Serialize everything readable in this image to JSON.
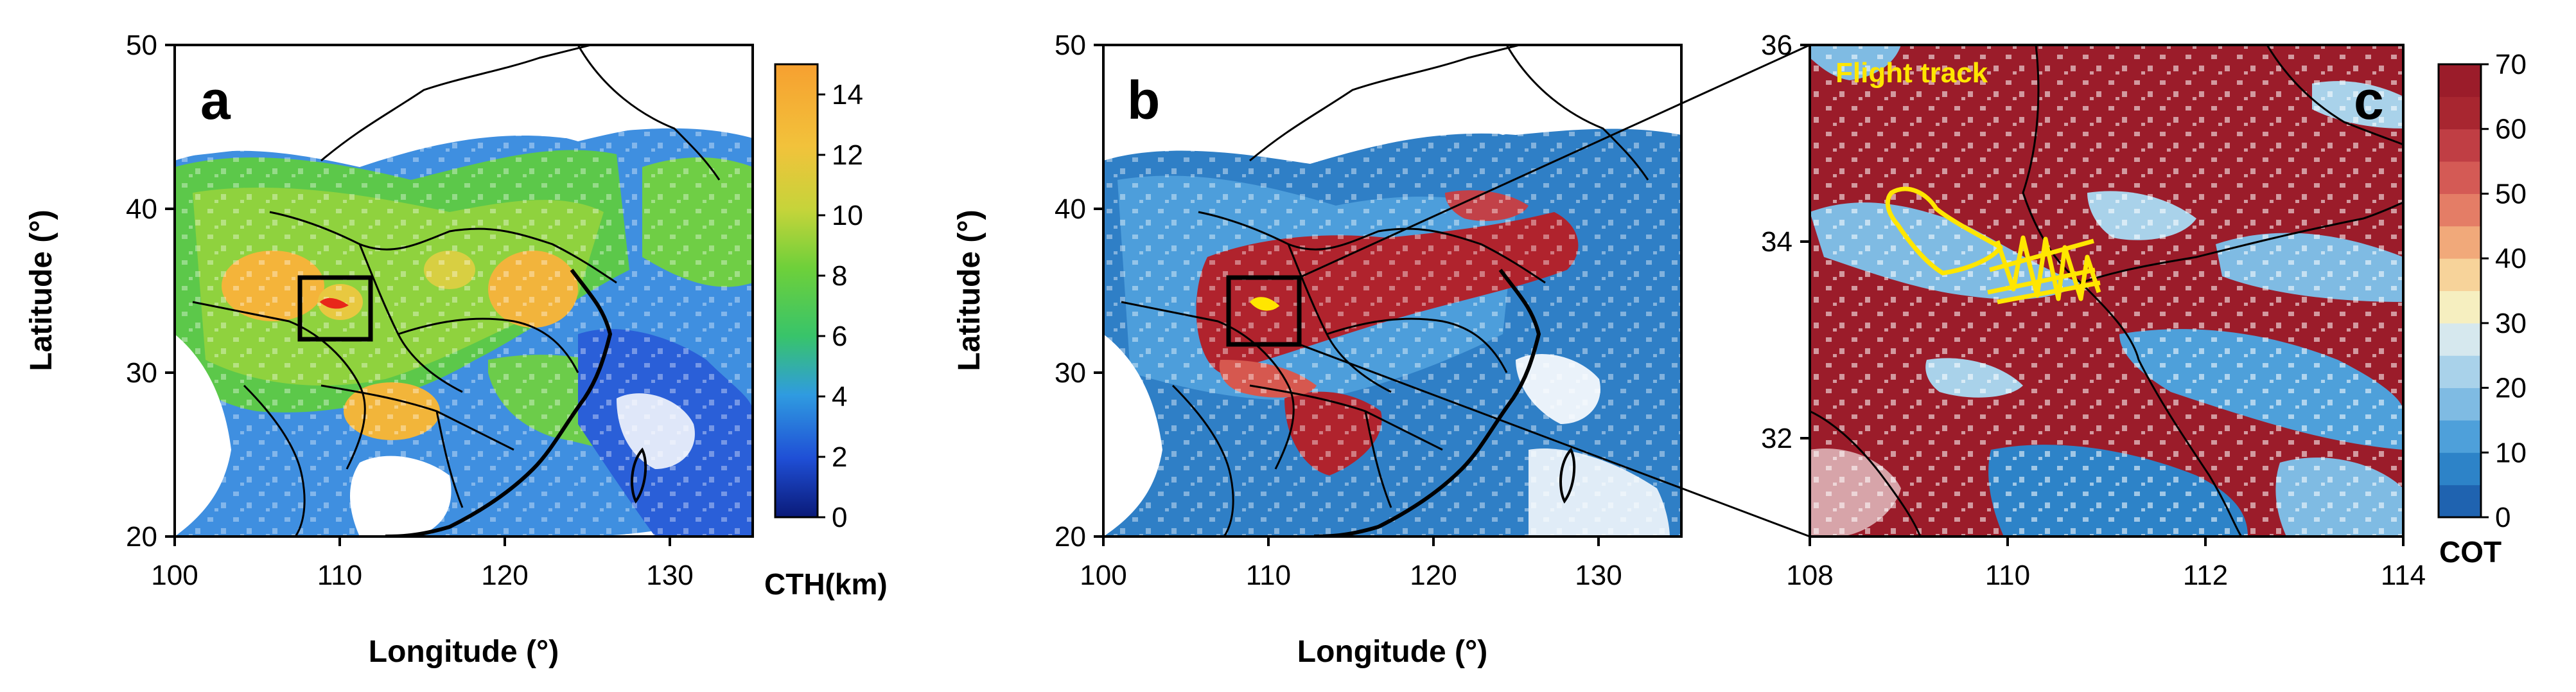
{
  "panels": {
    "a": {
      "label": "a",
      "xlabel": "Longitude (°)",
      "ylabel": "Latitude (°)",
      "x_ticks": [
        "100",
        "110",
        "120",
        "130"
      ],
      "y_ticks": [
        "20",
        "30",
        "40",
        "50"
      ],
      "x_range": [
        100,
        135
      ],
      "y_range": [
        20,
        50
      ],
      "box": {
        "lon": [
          108,
          112
        ],
        "lat": [
          32,
          35.5
        ]
      }
    },
    "b": {
      "label": "b",
      "xlabel": "Longitude (°)",
      "ylabel": "Latitude (°)",
      "x_ticks": [
        "100",
        "110",
        "120",
        "130"
      ],
      "y_ticks": [
        "20",
        "30",
        "40",
        "50"
      ],
      "x_range": [
        100,
        135
      ],
      "y_range": [
        20,
        50
      ],
      "box": {
        "lon": [
          108,
          112
        ],
        "lat": [
          32,
          36
        ]
      }
    },
    "c": {
      "label": "c",
      "annotation": "Flight track",
      "x_ticks": [
        "108",
        "110",
        "112",
        "114"
      ],
      "y_ticks": [
        "32",
        "34",
        "36"
      ],
      "x_range": [
        108,
        114
      ],
      "y_range": [
        31,
        36
      ]
    }
  },
  "colorbars": {
    "cth": {
      "label": "CTH(km)",
      "ticks": [
        "0",
        "2",
        "4",
        "6",
        "8",
        "10",
        "12",
        "14"
      ],
      "range": [
        0,
        15
      ],
      "stops": [
        "#0a1a78",
        "#1f4fd6",
        "#2f9be0",
        "#38c46a",
        "#5ac83b",
        "#b8d43a",
        "#f2c23b",
        "#f6a030"
      ]
    },
    "cot": {
      "label": "COT",
      "ticks": [
        "0",
        "10",
        "20",
        "30",
        "40",
        "50",
        "60",
        "70"
      ],
      "range": [
        0,
        70
      ],
      "classes": [
        "#1f63b0",
        "#2d83c8",
        "#4ea0da",
        "#7fbbe3",
        "#a9d2ea",
        "#d6e8ee",
        "#f6efc0",
        "#f7d39a",
        "#f1a97a",
        "#e47d66",
        "#d45a55",
        "#c03e44",
        "#a82630",
        "#9b1c2a"
      ]
    }
  },
  "colors": {
    "flight_track": "#ffe600",
    "track_marker_a": "#e8261a",
    "coast": "#000000"
  }
}
